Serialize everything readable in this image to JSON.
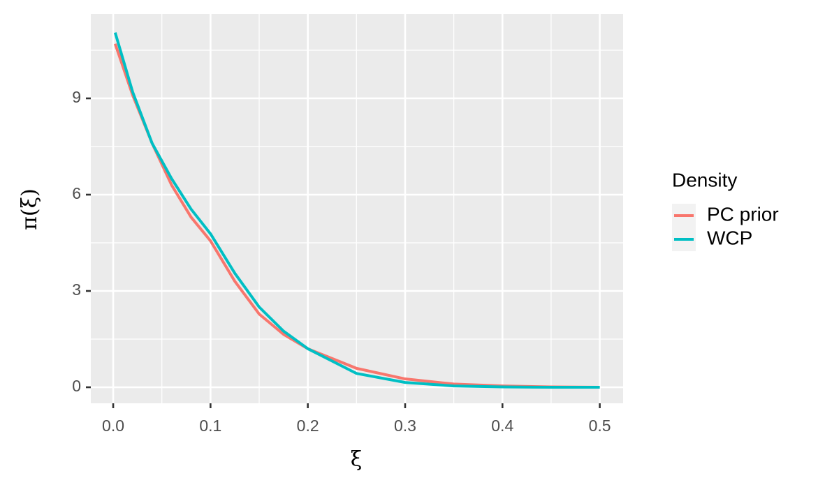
{
  "chart_data": {
    "type": "line",
    "xlabel": "ξ",
    "ylabel": "π(ξ)",
    "x": [
      0.002,
      0.02,
      0.04,
      0.06,
      0.08,
      0.1,
      0.125,
      0.15,
      0.175,
      0.2,
      0.25,
      0.3,
      0.35,
      0.4,
      0.45,
      0.5
    ],
    "series": [
      {
        "name": "PC prior",
        "color": "#F8766D",
        "values": [
          10.7,
          9.1,
          7.6,
          6.3,
          5.3,
          4.56,
          3.3,
          2.28,
          1.65,
          1.2,
          0.59,
          0.26,
          0.1,
          0.04,
          0.01,
          0
        ]
      },
      {
        "name": "WCP",
        "color": "#00BFC4",
        "values": [
          11.05,
          9.2,
          7.6,
          6.5,
          5.55,
          4.78,
          3.55,
          2.5,
          1.75,
          1.2,
          0.43,
          0.15,
          0.04,
          0.01,
          0,
          0
        ]
      }
    ],
    "legend_title": "Density",
    "legend": "right",
    "xlim": [
      -0.023,
      0.524
    ],
    "ylim": [
      -0.5,
      11.63
    ],
    "xticks": [
      {
        "value": 0,
        "label": "0.0"
      },
      0.1,
      0.2,
      0.3,
      0.4,
      0.5
    ],
    "yticks": [
      0,
      3,
      6,
      9
    ],
    "grid": true
  }
}
